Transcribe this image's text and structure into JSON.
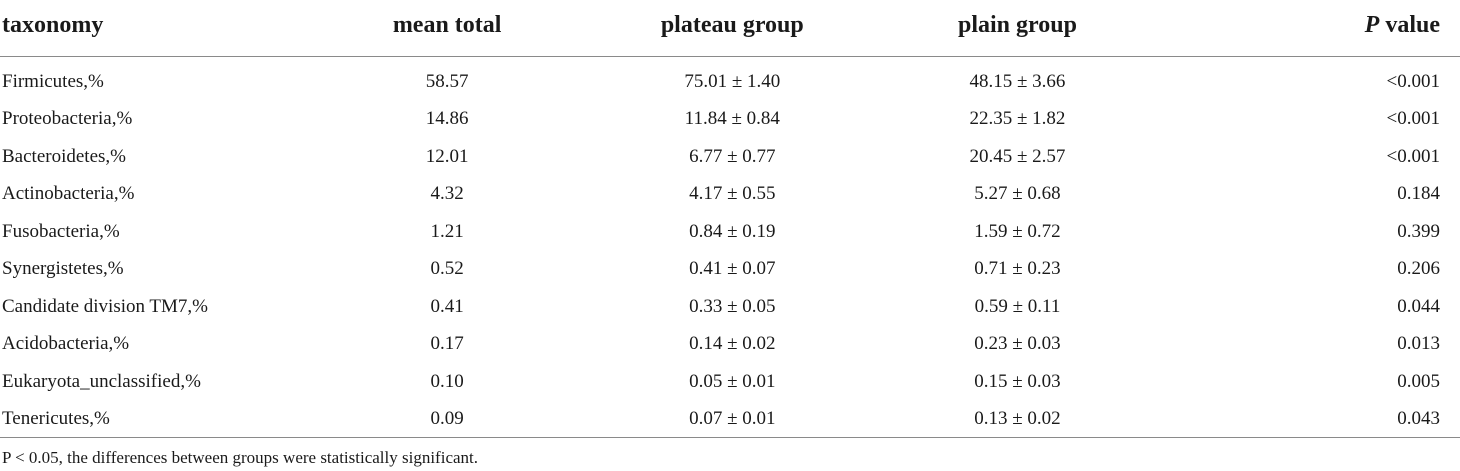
{
  "headers": {
    "taxonomy": "taxonomy",
    "mean_total": "mean total",
    "plateau_group": "plateau group",
    "plain_group": "plain group",
    "p_italic": "P",
    "p_rest": " value"
  },
  "rows": [
    {
      "taxonomy": "Firmicutes,%",
      "mean_total": "58.57",
      "plateau": "75.01 ± 1.40",
      "plain": "48.15 ± 3.66",
      "p": "<0.001"
    },
    {
      "taxonomy": "Proteobacteria,%",
      "mean_total": "14.86",
      "plateau": "11.84 ± 0.84",
      "plain": "22.35 ± 1.82",
      "p": "<0.001"
    },
    {
      "taxonomy": "Bacteroidetes,%",
      "mean_total": "12.01",
      "plateau": "6.77 ± 0.77",
      "plain": "20.45 ± 2.57",
      "p": "<0.001"
    },
    {
      "taxonomy": "Actinobacteria,%",
      "mean_total": "4.32",
      "plateau": "4.17 ± 0.55",
      "plain": "5.27 ± 0.68",
      "p": "0.184"
    },
    {
      "taxonomy": "Fusobacteria,%",
      "mean_total": "1.21",
      "plateau": "0.84 ± 0.19",
      "plain": "1.59 ± 0.72",
      "p": "0.399"
    },
    {
      "taxonomy": "Synergistetes,%",
      "mean_total": "0.52",
      "plateau": "0.41 ± 0.07",
      "plain": "0.71 ± 0.23",
      "p": "0.206"
    },
    {
      "taxonomy": "Candidate division TM7,%",
      "mean_total": "0.41",
      "plateau": "0.33 ± 0.05",
      "plain": "0.59 ± 0.11",
      "p": "0.044"
    },
    {
      "taxonomy": "Acidobacteria,%",
      "mean_total": "0.17",
      "plateau": "0.14 ± 0.02",
      "plain": "0.23 ± 0.03",
      "p": "0.013"
    },
    {
      "taxonomy": "Eukaryota_unclassified,%",
      "mean_total": "0.10",
      "plateau": "0.05 ± 0.01",
      "plain": "0.15 ± 0.03",
      "p": "0.005"
    },
    {
      "taxonomy": "Tenericutes,%",
      "mean_total": "0.09",
      "plateau": "0.07 ± 0.01",
      "plain": "0.13 ± 0.02",
      "p": "0.043"
    }
  ],
  "footnote": "P < 0.05, the differences between groups were statistically significant."
}
